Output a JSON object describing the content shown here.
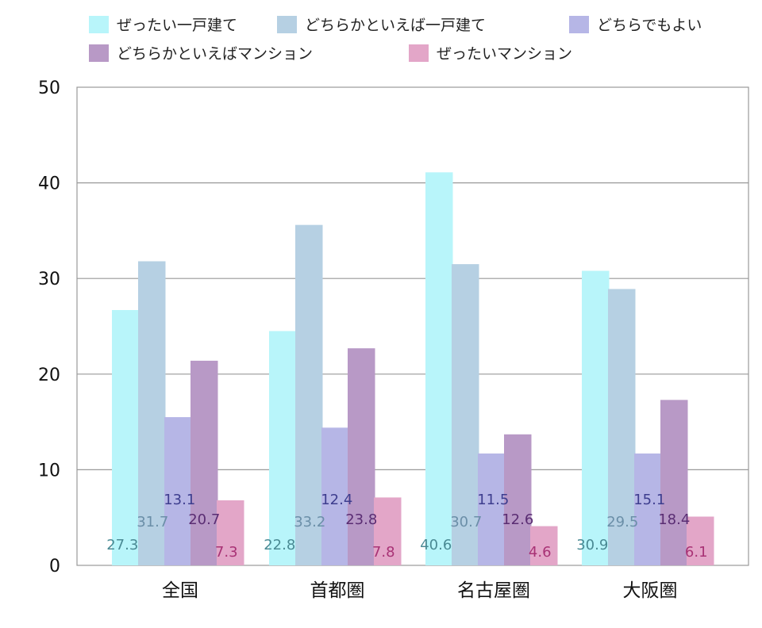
{
  "chart_data": {
    "type": "bar",
    "categories": [
      "全国",
      "首都圏",
      "名古屋圏",
      "大阪圏"
    ],
    "series": [
      {
        "name": "ぜったい一戸建て",
        "color": "#b8f5fa",
        "label_color": "#4a8a94",
        "values": [
          27.3,
          22.8,
          40.6,
          30.9
        ],
        "shown_heights": [
          26.7,
          24.5,
          41.1,
          30.8
        ]
      },
      {
        "name": "どちらかといえば一戸建て",
        "color": "#b6d0e3",
        "label_color": "#6b8fa8",
        "values": [
          31.7,
          33.2,
          30.7,
          29.5
        ],
        "shown_heights": [
          31.8,
          35.6,
          31.5,
          28.9
        ]
      },
      {
        "name": "どちらでもよい",
        "color": "#b6b6e6",
        "label_color": "#3d3d8e",
        "values": [
          13.1,
          12.4,
          11.5,
          15.1
        ],
        "shown_heights": [
          15.5,
          14.4,
          11.7,
          11.7
        ]
      },
      {
        "name": "どちらかといえばマンション",
        "color": "#b899c6",
        "label_color": "#5a2d73",
        "values": [
          20.7,
          23.8,
          12.6,
          18.4
        ],
        "shown_heights": [
          21.4,
          22.7,
          13.7,
          17.3
        ]
      },
      {
        "name": "ぜったいマンション",
        "color": "#e3a6c8",
        "label_color": "#a83275",
        "values": [
          7.3,
          7.8,
          4.6,
          6.1
        ],
        "shown_heights": [
          6.8,
          7.1,
          4.1,
          5.1
        ]
      }
    ],
    "ylim": [
      0,
      50
    ],
    "yticks": [
      "0",
      "10",
      "20",
      "30",
      "40",
      "50"
    ],
    "grid": true,
    "legend_position": "top"
  }
}
